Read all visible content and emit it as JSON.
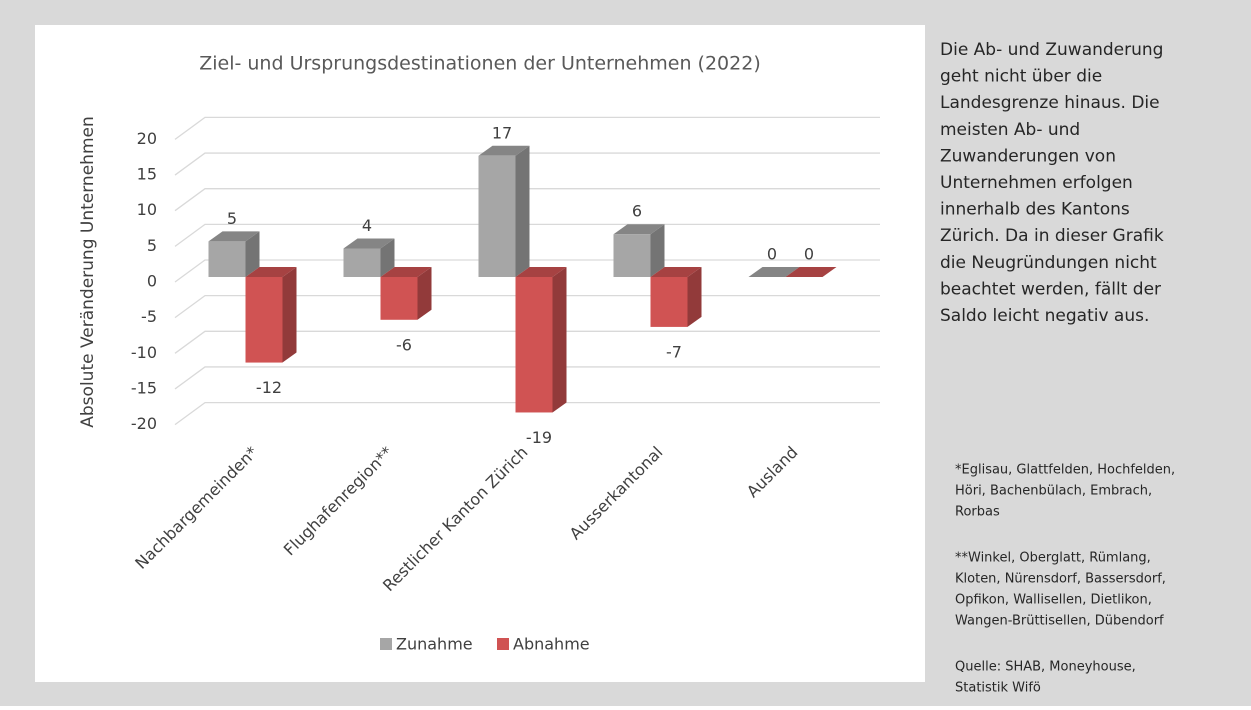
{
  "chart_data": {
    "type": "bar3d",
    "title": "Ziel- und Ursprungsdestinationen der Unternehmen (2022)",
    "y_label": "Absolute Veränderung Unternehmen",
    "categories": [
      "Nachbargemeinden*",
      "Flughafenregion**",
      "Restlicher Kanton Zürich",
      "Ausserkantonal",
      "Ausland"
    ],
    "series": [
      {
        "name": "Zunahme",
        "color": "#a6a6a6",
        "values": [
          5,
          4,
          17,
          6,
          0
        ]
      },
      {
        "name": "Abnahme",
        "color": "#d05353",
        "values": [
          -12,
          -6,
          -19,
          -7,
          0
        ]
      }
    ],
    "ylim": [
      -20,
      20
    ],
    "yticks": [
      -20,
      -15,
      -10,
      -5,
      0,
      5,
      10,
      15,
      20
    ],
    "grid": true,
    "legend": "bottom"
  },
  "sidebar": {
    "text_lines": [
      "Die Ab- und Zuwanderung",
      "geht nicht über die",
      "Landesgrenze hinaus. Die",
      "meisten Ab- und",
      "Zuwanderungen von",
      "Unternehmen erfolgen",
      "innerhalb des Kantons",
      "Zürich. Da in dieser Grafik",
      "die Neugründungen nicht",
      "beachtet werden, fällt der",
      "Saldo leicht negativ aus."
    ],
    "note1_lines": [
      "*Eglisau, Glattfelden, Hochfelden,",
      "Höri, Bachenbülach, Embrach,",
      "Rorbas"
    ],
    "note2_lines": [
      "**Winkel, Oberglatt, Rümlang,",
      "Kloten, Nürensdorf, Bassersdorf,",
      "Opfikon, Wallisellen, Dietlikon,",
      "Wangen-Brüttisellen, Dübendorf"
    ],
    "source_lines": [
      " Quelle: SHAB, Moneyhouse,",
      "Statistik Wifö"
    ]
  }
}
